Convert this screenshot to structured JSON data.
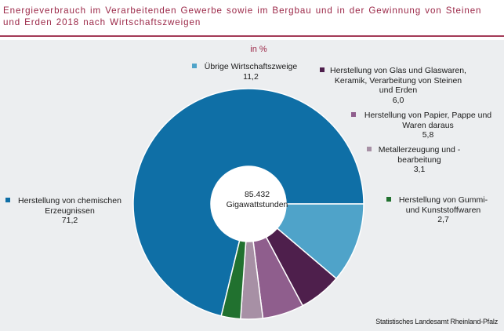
{
  "title": "Energieverbrauch im Verarbeitenden Gewerbe sowie im Bergbau und in der Gewinnung von Steinen und Erden 2018 nach Wirtschaftszweigen",
  "unit_label": "in %",
  "center": {
    "value": "85.432",
    "unit": "Gigawattstunden"
  },
  "source": "Statistisches Landesamt Rheinland-Pfalz",
  "colors": {
    "title": "#9b2747",
    "background_plot": "#eceef0"
  },
  "chart_data": {
    "type": "pie",
    "donut": true,
    "title": "Energieverbrauch im Verarbeitenden Gewerbe sowie im Bergbau und in der Gewinnung von Steinen und Erden 2018 nach Wirtschaftszweigen",
    "unit": "in %",
    "slices": [
      {
        "name_lines": [
          "Herstellung von chemischen",
          "Erzeugnissen"
        ],
        "value": 71.2,
        "value_label": "71,2",
        "color": "#0f6fa6"
      },
      {
        "name_lines": [
          "Übrige Wirtschaftszweige"
        ],
        "value": 11.2,
        "value_label": "11,2",
        "color": "#4fa3c9"
      },
      {
        "name_lines": [
          "Herstellung von Glas und Glaswaren,",
          "Keramik, Verarbeitung von Steinen",
          "und Erden"
        ],
        "value": 6.0,
        "value_label": "6,0",
        "color": "#4e1f4c"
      },
      {
        "name_lines": [
          "Herstellung von Papier, Pappe und",
          "Waren daraus"
        ],
        "value": 5.8,
        "value_label": "5,8",
        "color": "#8f5e8d"
      },
      {
        "name_lines": [
          "Metallerzeugung und -",
          "bearbeitung"
        ],
        "value": 3.1,
        "value_label": "3,1",
        "color": "#a790a5"
      },
      {
        "name_lines": [
          "Herstellung von Gummi-",
          "und Kunststoffwaren"
        ],
        "value": 2.7,
        "value_label": "2,7",
        "color": "#21712f"
      }
    ]
  }
}
